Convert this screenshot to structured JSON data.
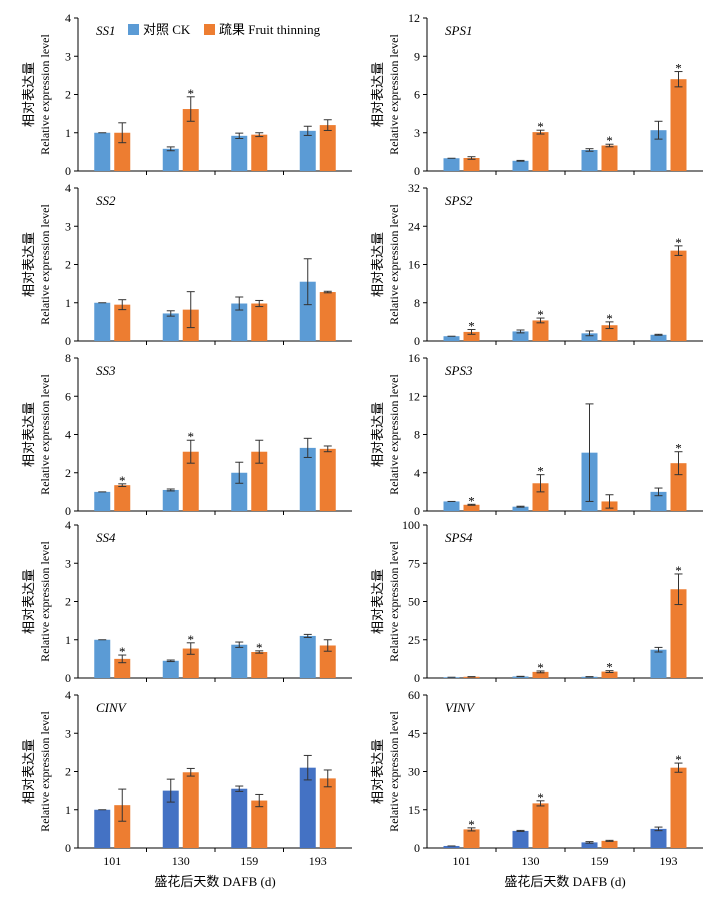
{
  "figure": {
    "x_axis_label": "盛花后天数 DAFB (d)",
    "y_axis_label_cn": "相对表达量",
    "y_axis_label_en": "Relative expression level",
    "legend": {
      "position": "top",
      "items": [
        {
          "label": "对照 CK",
          "color": "#5b9bd5"
        },
        {
          "label": "疏果 Fruit thinning",
          "color": "#ed7d31"
        }
      ]
    }
  },
  "chart_data": [
    {
      "type": "bar",
      "gene": "SS1",
      "categories": [
        "101",
        "130",
        "159",
        "193"
      ],
      "ylim": [
        0,
        4
      ],
      "yticks": [
        0,
        1,
        2,
        3,
        4
      ],
      "series": [
        {
          "name": "对照 CK",
          "values": [
            1.0,
            0.58,
            0.92,
            1.05
          ],
          "errors": [
            0.0,
            0.05,
            0.07,
            0.12
          ]
        },
        {
          "name": "疏果 Fruit thinning",
          "values": [
            1.0,
            1.62,
            0.95,
            1.2
          ],
          "errors": [
            0.26,
            0.32,
            0.05,
            0.14
          ]
        }
      ],
      "significant": [
        [
          false,
          false,
          false,
          false
        ],
        [
          false,
          true,
          false,
          false
        ]
      ]
    },
    {
      "type": "bar",
      "gene": "SPS1",
      "categories": [
        "101",
        "130",
        "159",
        "193"
      ],
      "ylim": [
        0,
        12
      ],
      "yticks": [
        0,
        3,
        6,
        9,
        12
      ],
      "series": [
        {
          "name": "对照 CK",
          "values": [
            1.0,
            0.8,
            1.65,
            3.2
          ],
          "errors": [
            0.0,
            0.03,
            0.1,
            0.7
          ]
        },
        {
          "name": "疏果 Fruit thinning",
          "values": [
            1.02,
            3.05,
            2.0,
            7.2
          ],
          "errors": [
            0.1,
            0.15,
            0.1,
            0.6
          ]
        }
      ],
      "significant": [
        [
          false,
          false,
          false,
          false
        ],
        [
          false,
          true,
          true,
          true
        ]
      ]
    },
    {
      "type": "bar",
      "gene": "SS2",
      "categories": [
        "101",
        "130",
        "159",
        "193"
      ],
      "ylim": [
        0,
        4
      ],
      "yticks": [
        0,
        1,
        2,
        3,
        4
      ],
      "series": [
        {
          "name": "对照 CK",
          "values": [
            1.0,
            0.72,
            0.98,
            1.55
          ],
          "errors": [
            0.0,
            0.07,
            0.17,
            0.6
          ]
        },
        {
          "name": "疏果 Fruit thinning",
          "values": [
            0.95,
            0.82,
            0.98,
            1.28
          ],
          "errors": [
            0.13,
            0.47,
            0.08,
            0.02
          ]
        }
      ],
      "significant": [
        [
          false,
          false,
          false,
          false
        ],
        [
          false,
          false,
          false,
          false
        ]
      ]
    },
    {
      "type": "bar",
      "gene": "SPS2",
      "categories": [
        "101",
        "130",
        "159",
        "193"
      ],
      "ylim": [
        0,
        32
      ],
      "yticks": [
        0,
        8,
        16,
        24,
        32
      ],
      "series": [
        {
          "name": "对照 CK",
          "values": [
            1.0,
            2.0,
            1.6,
            1.3
          ],
          "errors": [
            0.0,
            0.3,
            0.5,
            0.1
          ]
        },
        {
          "name": "疏果 Fruit thinning",
          "values": [
            1.9,
            4.3,
            3.3,
            18.9
          ],
          "errors": [
            0.5,
            0.5,
            0.7,
            1.0
          ]
        }
      ],
      "significant": [
        [
          false,
          false,
          false,
          false
        ],
        [
          true,
          true,
          true,
          true
        ]
      ]
    },
    {
      "type": "bar",
      "gene": "SS3",
      "categories": [
        "101",
        "130",
        "159",
        "193"
      ],
      "ylim": [
        0,
        8
      ],
      "yticks": [
        0,
        2,
        4,
        6,
        8
      ],
      "series": [
        {
          "name": "对照 CK",
          "values": [
            1.0,
            1.1,
            2.0,
            3.3
          ],
          "errors": [
            0.0,
            0.05,
            0.55,
            0.5
          ]
        },
        {
          "name": "疏果 Fruit thinning",
          "values": [
            1.35,
            3.1,
            3.1,
            3.25
          ],
          "errors": [
            0.07,
            0.6,
            0.6,
            0.15
          ]
        }
      ],
      "significant": [
        [
          false,
          false,
          false,
          false
        ],
        [
          true,
          true,
          false,
          false
        ]
      ]
    },
    {
      "type": "bar",
      "gene": "SPS3",
      "categories": [
        "101",
        "130",
        "159",
        "193"
      ],
      "ylim": [
        0,
        16
      ],
      "yticks": [
        0,
        4,
        8,
        12,
        16
      ],
      "series": [
        {
          "name": "对照 CK",
          "values": [
            1.0,
            0.45,
            6.1,
            2.0
          ],
          "errors": [
            0.0,
            0.05,
            5.1,
            0.4
          ]
        },
        {
          "name": "疏果 Fruit thinning",
          "values": [
            0.65,
            2.9,
            1.0,
            5.0
          ],
          "errors": [
            0.05,
            0.9,
            0.7,
            1.2
          ]
        }
      ],
      "significant": [
        [
          false,
          false,
          false,
          false
        ],
        [
          true,
          true,
          false,
          true
        ]
      ]
    },
    {
      "type": "bar",
      "gene": "SS4",
      "categories": [
        "101",
        "130",
        "159",
        "193"
      ],
      "ylim": [
        0,
        4
      ],
      "yticks": [
        0,
        1,
        2,
        3,
        4
      ],
      "series": [
        {
          "name": "对照 CK",
          "values": [
            1.0,
            0.45,
            0.87,
            1.1
          ],
          "errors": [
            0.0,
            0.02,
            0.07,
            0.04
          ]
        },
        {
          "name": "疏果 Fruit thinning",
          "values": [
            0.5,
            0.77,
            0.68,
            0.85
          ],
          "errors": [
            0.1,
            0.15,
            0.03,
            0.15
          ]
        }
      ],
      "significant": [
        [
          false,
          false,
          false,
          false
        ],
        [
          true,
          true,
          true,
          false
        ]
      ]
    },
    {
      "type": "bar",
      "gene": "SPS4",
      "categories": [
        "101",
        "130",
        "159",
        "193"
      ],
      "ylim": [
        0,
        100
      ],
      "yticks": [
        0,
        25,
        50,
        75,
        100
      ],
      "series": [
        {
          "name": "对照 CK",
          "values": [
            0.5,
            1.0,
            0.8,
            18.5
          ],
          "errors": [
            0.0,
            0.1,
            0.1,
            1.5
          ]
        },
        {
          "name": "疏果 Fruit thinning",
          "values": [
            0.8,
            4.0,
            4.2,
            58.0
          ],
          "errors": [
            0.1,
            0.6,
            0.6,
            10.0
          ]
        }
      ],
      "significant": [
        [
          false,
          false,
          false,
          false
        ],
        [
          false,
          true,
          true,
          true
        ]
      ]
    },
    {
      "type": "bar",
      "gene": "CINV",
      "categories": [
        "101",
        "130",
        "159",
        "193"
      ],
      "ylim": [
        0,
        4
      ],
      "yticks": [
        0,
        1,
        2,
        3,
        4
      ],
      "series": [
        {
          "name": "对照 CK",
          "values": [
            1.0,
            1.5,
            1.55,
            2.1
          ],
          "errors": [
            0.0,
            0.3,
            0.07,
            0.32
          ]
        },
        {
          "name": "疏果 Fruit thinning",
          "values": [
            1.12,
            1.98,
            1.24,
            1.82
          ],
          "errors": [
            0.42,
            0.1,
            0.16,
            0.22
          ]
        }
      ],
      "significant": [
        [
          false,
          false,
          false,
          false
        ],
        [
          false,
          false,
          false,
          false
        ]
      ]
    },
    {
      "type": "bar",
      "gene": "VINV",
      "categories": [
        "101",
        "130",
        "159",
        "193"
      ],
      "ylim": [
        0,
        60
      ],
      "yticks": [
        0,
        15,
        30,
        45,
        60
      ],
      "series": [
        {
          "name": "对照 CK",
          "values": [
            0.8,
            6.7,
            2.2,
            7.5
          ],
          "errors": [
            0.0,
            0.2,
            0.3,
            0.7
          ]
        },
        {
          "name": "疏果 Fruit thinning",
          "values": [
            7.3,
            17.5,
            2.8,
            31.5
          ],
          "errors": [
            0.6,
            1.0,
            0.2,
            1.8
          ]
        }
      ],
      "significant": [
        [
          false,
          false,
          false,
          false
        ],
        [
          true,
          true,
          false,
          true
        ]
      ]
    }
  ]
}
